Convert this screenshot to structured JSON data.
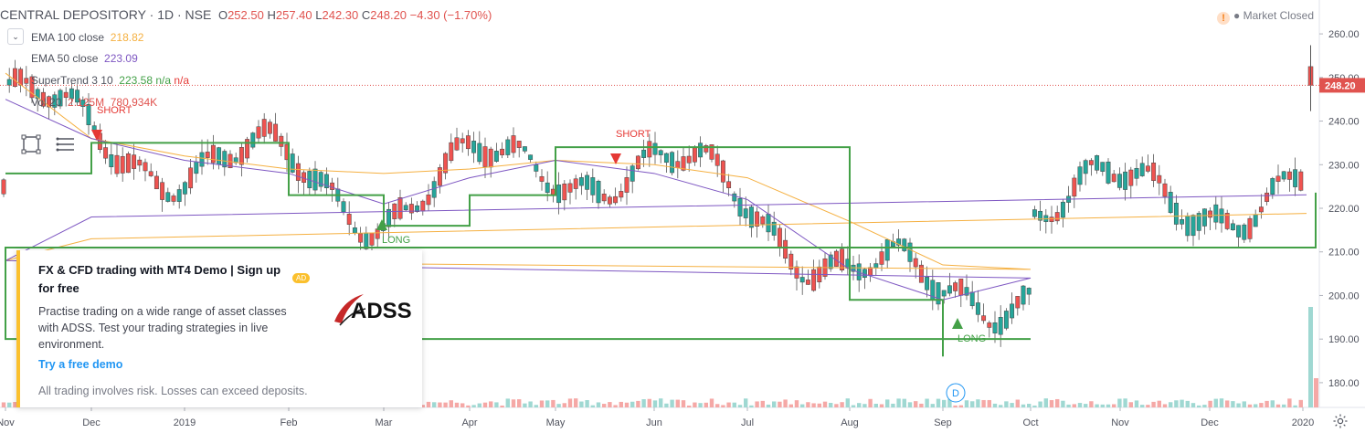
{
  "header": {
    "symbol": "CENTRAL DEPOSITORY · 1D · NSE",
    "open_k": "O",
    "open": "252.50",
    "high_k": "H",
    "high": "257.40",
    "low_k": "L",
    "low": "242.30",
    "close_k": "C",
    "close": "248.20",
    "change": "−4.30 (−1.70%)"
  },
  "market_status": "Market Closed",
  "indicators": [
    {
      "label": "EMA 100 close",
      "value": "218.82",
      "color": "#f5b041"
    },
    {
      "label": "EMA 50 close",
      "value": "223.09",
      "color": "#7e57c2"
    },
    {
      "label": "SuperTrend 3 10",
      "value": "223.58",
      "value2": "n/a",
      "value3": "n/a",
      "color": "#43a047",
      "color2": "#e53935"
    },
    {
      "label": "Vol 20",
      "value": "2.125M",
      "value2": "780.934K",
      "color": "#e0534f"
    }
  ],
  "ad": {
    "title": "FX & CFD trading with MT4 Demo | Sign up for free",
    "badge": "AD",
    "body": "Practise trading on a wide range of asset classes with ADSS. Test your trading strategies in live environment.",
    "logo_text": "ADSS",
    "cta": "Try a free demo",
    "risk": "All trading involves risk. Losses can exceed deposits."
  },
  "colors": {
    "up": "#26a69a",
    "down": "#ef5350",
    "st_up": "#43a047",
    "st_down": "#e53935",
    "ema100": "#f5b041",
    "ema50": "#7e57c2"
  },
  "chart_data": {
    "type": "candlestick",
    "y_axis_ticks": [
      "260.00",
      "250.00",
      "240.00",
      "230.00",
      "220.00",
      "210.00",
      "200.00",
      "190.00",
      "180.00"
    ],
    "ylim": [
      176,
      264
    ],
    "x_axis_ticks": [
      "Nov",
      "Dec",
      "2019",
      "Feb",
      "Mar",
      "Apr",
      "May",
      "Jun",
      "Jul",
      "Aug",
      "Sep",
      "Oct",
      "Nov",
      "Dec",
      "2020"
    ],
    "last_price": "248.20",
    "annotations": [
      {
        "text": "SHORT",
        "x": "Nov 2018",
        "color": "#e53935"
      },
      {
        "text": "LONG",
        "x": "Mar 2019",
        "color": "#43a047"
      },
      {
        "text": "SHORT",
        "x": "May 2019",
        "color": "#e53935"
      },
      {
        "text": "LONG",
        "x": "Sep 2019",
        "color": "#43a047"
      }
    ],
    "dividend_marker": "D",
    "series": [
      {
        "name": "EMA 100 close",
        "key_points": [
          [
            "Nov",
            251
          ],
          [
            "Dec",
            236
          ],
          [
            "2019",
            232
          ],
          [
            "Feb",
            229
          ],
          [
            "Mar",
            228
          ],
          [
            "Apr",
            229
          ],
          [
            "May",
            231
          ],
          [
            "Jun",
            230
          ],
          [
            "Jul",
            227
          ],
          [
            "Aug",
            217
          ],
          [
            "Sep",
            207
          ],
          [
            "Oct",
            206
          ],
          [
            "Nov",
            208
          ],
          [
            "Dec",
            213
          ],
          [
            "2020",
            218.82
          ]
        ]
      },
      {
        "name": "EMA 50 close",
        "key_points": [
          [
            "Nov",
            245
          ],
          [
            "Dec",
            236
          ],
          [
            "2019",
            231
          ],
          [
            "Feb",
            228
          ],
          [
            "Mar",
            221
          ],
          [
            "Apr",
            227
          ],
          [
            "May",
            231
          ],
          [
            "Jun",
            228
          ],
          [
            "Jul",
            222
          ],
          [
            "Aug",
            206
          ],
          [
            "Sep",
            199
          ],
          [
            "Oct",
            204
          ],
          [
            "Nov",
            208
          ],
          [
            "Dec",
            218
          ],
          [
            "2020",
            223.09
          ]
        ]
      },
      {
        "name": "SuperTrend 3 10",
        "key_points": [
          [
            "Nov",
            228
          ],
          [
            "Dec",
            235
          ],
          [
            "Feb",
            235
          ],
          [
            "Feb",
            223
          ],
          [
            "Mar",
            223
          ],
          [
            "Mar",
            216
          ],
          [
            "Apr",
            223
          ],
          [
            "May",
            223
          ],
          [
            "May",
            234
          ],
          [
            "Jul",
            234
          ],
          [
            "Aug",
            209
          ],
          [
            "Aug",
            199
          ],
          [
            "Sep",
            199
          ],
          [
            "Sep",
            186
          ],
          [
            "Sep",
            190
          ],
          [
            "Oct",
            190
          ],
          [
            "Nov",
            211
          ],
          [
            "2020",
            211
          ],
          [
            "2020",
            223.58
          ]
        ]
      }
    ]
  }
}
